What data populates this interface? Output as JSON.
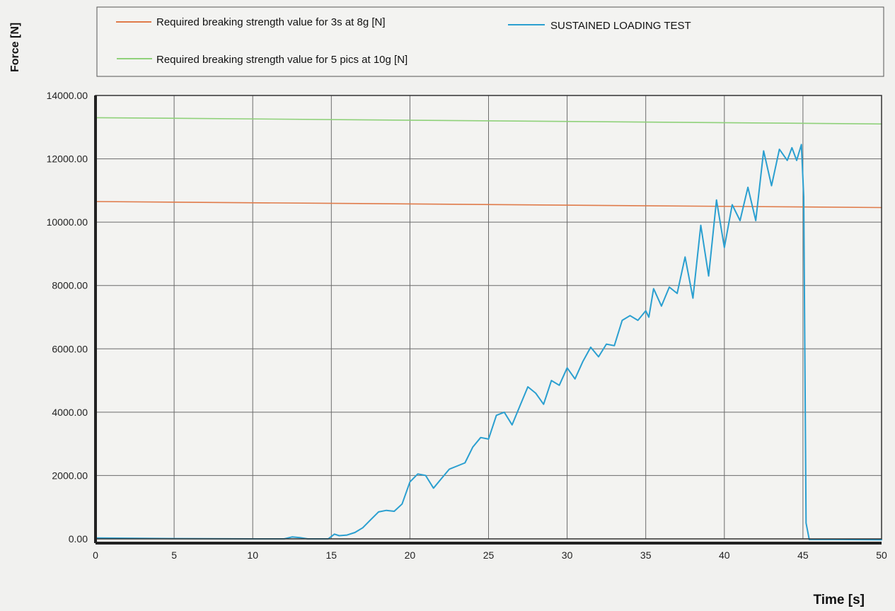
{
  "chart_data": {
    "type": "line",
    "xlabel": "Time [s]",
    "ylabel": "Force [N]",
    "xlim": [
      0,
      50
    ],
    "ylim": [
      0,
      14000
    ],
    "x_ticks": [
      "0",
      "5",
      "10",
      "15",
      "20",
      "25",
      "30",
      "35",
      "40",
      "45",
      "50"
    ],
    "y_ticks": [
      "0.00",
      "2000.00",
      "4000.00",
      "6000.00",
      "8000.00",
      "10000.00",
      "12000.00",
      "14000.00"
    ],
    "grid": true,
    "legend_position": "top",
    "series": [
      {
        "name": "Required breaking strength value for 3s at 8g [N]",
        "color": "#e07b4a",
        "points": [
          [
            0,
            10650
          ],
          [
            50,
            10460
          ]
        ]
      },
      {
        "name": "SUSTAINED LOADING TEST",
        "color": "#2a9fd0",
        "points": [
          [
            0,
            30
          ],
          [
            5,
            10
          ],
          [
            10,
            0
          ],
          [
            12,
            0
          ],
          [
            12.5,
            60
          ],
          [
            13,
            40
          ],
          [
            13.5,
            0
          ],
          [
            14,
            0
          ],
          [
            14.8,
            0
          ],
          [
            15.2,
            150
          ],
          [
            15.5,
            100
          ],
          [
            16,
            120
          ],
          [
            16.5,
            200
          ],
          [
            17,
            350
          ],
          [
            17.5,
            600
          ],
          [
            18,
            850
          ],
          [
            18.5,
            900
          ],
          [
            19,
            870
          ],
          [
            19.5,
            1100
          ],
          [
            20,
            1800
          ],
          [
            20.5,
            2050
          ],
          [
            21,
            2000
          ],
          [
            21.5,
            1600
          ],
          [
            22,
            1900
          ],
          [
            22.5,
            2200
          ],
          [
            23,
            2300
          ],
          [
            23.5,
            2400
          ],
          [
            24,
            2900
          ],
          [
            24.5,
            3200
          ],
          [
            25,
            3150
          ],
          [
            25.5,
            3900
          ],
          [
            26,
            4000
          ],
          [
            26.5,
            3600
          ],
          [
            27,
            4200
          ],
          [
            27.5,
            4800
          ],
          [
            28,
            4600
          ],
          [
            28.5,
            4250
          ],
          [
            29,
            5000
          ],
          [
            29.5,
            4850
          ],
          [
            30,
            5400
          ],
          [
            30.5,
            5050
          ],
          [
            31,
            5600
          ],
          [
            31.5,
            6050
          ],
          [
            32,
            5750
          ],
          [
            32.5,
            6150
          ],
          [
            33,
            6100
          ],
          [
            33.5,
            6900
          ],
          [
            34,
            7050
          ],
          [
            34.5,
            6900
          ],
          [
            35,
            7200
          ],
          [
            35.2,
            7000
          ],
          [
            35.5,
            7900
          ],
          [
            36,
            7350
          ],
          [
            36.5,
            7950
          ],
          [
            37,
            7750
          ],
          [
            37.5,
            8900
          ],
          [
            38,
            7600
          ],
          [
            38.5,
            9900
          ],
          [
            39,
            8300
          ],
          [
            39.5,
            10700
          ],
          [
            40,
            9200
          ],
          [
            40.5,
            10550
          ],
          [
            41,
            10050
          ],
          [
            41.5,
            11100
          ],
          [
            42,
            10050
          ],
          [
            42.5,
            12250
          ],
          [
            43,
            11150
          ],
          [
            43.5,
            12300
          ],
          [
            44,
            11950
          ],
          [
            44.3,
            12350
          ],
          [
            44.6,
            11950
          ],
          [
            44.9,
            12450
          ],
          [
            45.05,
            10800
          ],
          [
            45.2,
            500
          ],
          [
            45.4,
            -20
          ],
          [
            47,
            -20
          ],
          [
            50,
            -30
          ]
        ]
      },
      {
        "name": "Required breaking strength value for 5 pics at 10g [N]",
        "color": "#8fd17a",
        "points": [
          [
            0,
            13300
          ],
          [
            50,
            13100
          ]
        ]
      }
    ]
  }
}
